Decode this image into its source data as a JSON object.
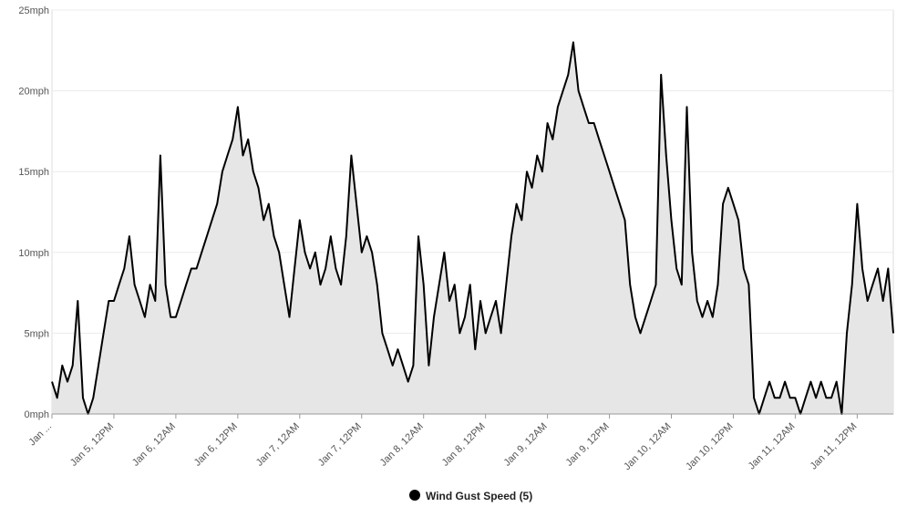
{
  "chart_data": {
    "type": "area",
    "x": [
      0,
      1,
      2,
      3,
      4,
      5,
      6,
      7,
      8,
      9,
      10,
      11,
      12,
      13,
      14,
      15,
      16,
      17,
      18,
      19,
      20,
      21,
      22,
      23,
      24,
      25,
      26,
      27,
      28,
      29,
      30,
      31,
      32,
      33,
      34,
      35,
      36,
      37,
      38,
      39,
      40,
      41,
      42,
      43,
      44,
      45,
      46,
      47,
      48,
      49,
      50,
      51,
      52,
      53,
      54,
      55,
      56,
      57,
      58,
      59,
      60,
      61,
      62,
      63,
      64,
      65,
      66,
      67,
      68,
      69,
      70,
      71,
      72,
      73,
      74,
      75,
      76,
      77,
      78,
      79,
      80,
      81,
      82,
      83,
      84,
      85,
      86,
      87,
      88,
      89,
      90,
      91,
      92,
      93,
      94,
      95,
      96,
      97,
      98,
      99,
      100,
      101,
      102,
      103,
      104,
      105,
      106,
      107,
      108,
      109,
      110,
      111,
      112,
      113,
      114,
      115,
      116,
      117,
      118,
      119,
      120,
      121,
      122,
      123,
      124,
      125,
      126,
      127,
      128,
      129,
      130,
      131,
      132,
      133,
      134,
      135,
      136,
      137,
      138,
      139,
      140,
      141,
      142,
      143,
      144,
      145,
      146,
      147,
      148,
      149,
      150,
      151,
      152,
      153,
      154,
      155,
      156,
      157,
      158,
      159,
      160,
      161,
      162,
      163
    ],
    "series": [
      {
        "name": "Wind Gust Speed (5)",
        "color": "#000000",
        "fill": "#e6e6e6",
        "values": [
          2,
          1,
          3,
          2,
          3,
          7,
          1,
          0,
          1,
          3,
          5,
          7,
          7,
          8,
          9,
          11,
          8,
          7,
          6,
          8,
          7,
          16,
          8,
          6,
          6,
          7,
          8,
          9,
          9,
          10,
          11,
          12,
          13,
          15,
          16,
          17,
          19,
          16,
          17,
          15,
          14,
          12,
          13,
          11,
          10,
          8,
          6,
          9,
          12,
          10,
          9,
          10,
          8,
          9,
          11,
          9,
          8,
          11,
          16,
          13,
          10,
          11,
          10,
          8,
          5,
          4,
          3,
          4,
          3,
          2,
          3,
          11,
          8,
          3,
          6,
          8,
          10,
          7,
          8,
          5,
          6,
          8,
          4,
          7,
          5,
          6,
          7,
          5,
          8,
          11,
          13,
          12,
          15,
          14,
          16,
          15,
          18,
          17,
          19,
          20,
          21,
          23,
          20,
          19,
          18,
          18,
          17,
          16,
          15,
          14,
          13,
          12,
          8,
          6,
          5,
          6,
          7,
          8,
          21,
          16,
          12,
          9,
          8,
          19,
          10,
          7,
          6,
          7,
          6,
          8,
          13,
          14,
          13,
          12,
          9,
          8,
          1,
          0,
          1,
          2,
          1,
          1,
          2,
          1,
          1,
          0,
          1,
          2,
          1,
          2,
          1,
          1,
          2,
          0,
          5,
          8,
          13,
          9,
          7,
          8,
          9,
          7,
          9,
          5
        ]
      }
    ],
    "xlim": [
      0,
      163
    ],
    "xticks": [
      {
        "value": 0,
        "label": "Jan ..."
      },
      {
        "value": 12,
        "label": "Jan 5, 12PM"
      },
      {
        "value": 24,
        "label": "Jan 6, 12AM"
      },
      {
        "value": 36,
        "label": "Jan 6, 12PM"
      },
      {
        "value": 48,
        "label": "Jan 7, 12AM"
      },
      {
        "value": 60,
        "label": "Jan 7, 12PM"
      },
      {
        "value": 72,
        "label": "Jan 8, 12AM"
      },
      {
        "value": 84,
        "label": "Jan 8, 12PM"
      },
      {
        "value": 96,
        "label": "Jan 9, 12AM"
      },
      {
        "value": 108,
        "label": "Jan 9, 12PM"
      },
      {
        "value": 120,
        "label": "Jan 10, 12AM"
      },
      {
        "value": 132,
        "label": "Jan 10, 12PM"
      },
      {
        "value": 144,
        "label": "Jan 11, 12AM"
      },
      {
        "value": 156,
        "label": "Jan 11, 12PM"
      }
    ],
    "ylim": [
      0,
      25
    ],
    "yticks": [
      {
        "value": 0,
        "label": "0mph"
      },
      {
        "value": 5,
        "label": "5mph"
      },
      {
        "value": 10,
        "label": "10mph"
      },
      {
        "value": 15,
        "label": "15mph"
      },
      {
        "value": 20,
        "label": "20mph"
      },
      {
        "value": 25,
        "label": "25mph"
      }
    ],
    "grid": true
  }
}
